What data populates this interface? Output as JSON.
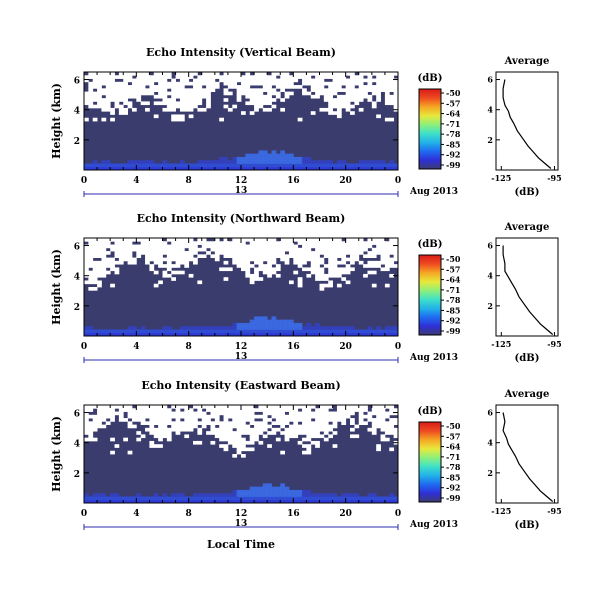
{
  "colors": {
    "background_echo": "#3b3c6e",
    "colorbar_stops": [
      "#3b3c6e",
      "#2f2fd8",
      "#1f6cf0",
      "#23b3e8",
      "#3fe0c8",
      "#8ef07a",
      "#e8e83c",
      "#f5a623",
      "#ee4a22",
      "#d81c18"
    ]
  },
  "xlabel_bottom": "Local Time",
  "date_label": "Aug 2013",
  "day_label": "13",
  "chart_data": [
    {
      "type": "heatmap",
      "title": "Echo Intensity (Vertical Beam)",
      "ylabel": "Height (km)",
      "x_ticks": [
        "0",
        "4",
        "8",
        "12",
        "16",
        "20",
        "0"
      ],
      "y_ticks": [
        "6",
        "4",
        "2"
      ],
      "colorbar": {
        "title": "(dB)",
        "ticks": [
          "-50",
          "-57",
          "-64",
          "-71",
          "-78",
          "-85",
          "-92",
          "-99"
        ]
      },
      "average_profile": {
        "title": "Average",
        "xlabel": "(dB)",
        "x_ticks": [
          "-125",
          "-95"
        ],
        "y_ticks": [
          "6",
          "4",
          "2"
        ],
        "x": [
          -123,
          -124,
          -124,
          -123,
          -121,
          -120,
          -118,
          -116,
          -113,
          -110,
          -107,
          -104,
          -100,
          -97
        ],
        "y": [
          6.0,
          5.4,
          4.8,
          4.3,
          3.9,
          3.5,
          3.1,
          2.6,
          2.1,
          1.6,
          1.2,
          0.8,
          0.4,
          0.1
        ]
      }
    },
    {
      "type": "heatmap",
      "title": "Echo Intensity (Northward Beam)",
      "ylabel": "Height (km)",
      "x_ticks": [
        "0",
        "4",
        "8",
        "12",
        "16",
        "20",
        "0"
      ],
      "y_ticks": [
        "6",
        "4",
        "2"
      ],
      "colorbar": {
        "title": "(dB)",
        "ticks": [
          "-50",
          "-57",
          "-64",
          "-71",
          "-78",
          "-85",
          "-92",
          "-99"
        ]
      },
      "average_profile": {
        "title": "Average",
        "xlabel": "(dB)",
        "x_ticks": [
          "-125",
          "-95"
        ],
        "y_ticks": [
          "6",
          "4",
          "2"
        ],
        "x": [
          -124,
          -124,
          -123,
          -123,
          -121,
          -119,
          -117,
          -115,
          -112,
          -109,
          -106,
          -103,
          -99,
          -96
        ],
        "y": [
          6.0,
          5.4,
          4.8,
          4.3,
          3.9,
          3.5,
          3.1,
          2.6,
          2.1,
          1.6,
          1.2,
          0.8,
          0.4,
          0.1
        ]
      }
    },
    {
      "type": "heatmap",
      "title": "Echo Intensity (Eastward Beam)",
      "ylabel": "Height (km)",
      "x_ticks": [
        "0",
        "4",
        "8",
        "12",
        "16",
        "20",
        "0"
      ],
      "y_ticks": [
        "6",
        "4",
        "2"
      ],
      "colorbar": {
        "title": "(dB)",
        "ticks": [
          "-50",
          "-57",
          "-64",
          "-71",
          "-78",
          "-85",
          "-92",
          "-99"
        ]
      },
      "average_profile": {
        "title": "Average",
        "xlabel": "(dB)",
        "x_ticks": [
          "-125",
          "-95"
        ],
        "y_ticks": [
          "6",
          "4",
          "2"
        ],
        "x": [
          -124,
          -123,
          -124,
          -122,
          -121,
          -119,
          -117,
          -115,
          -112,
          -109,
          -106,
          -103,
          -99,
          -96
        ],
        "y": [
          6.0,
          5.4,
          4.8,
          4.3,
          3.9,
          3.5,
          3.1,
          2.6,
          2.1,
          1.6,
          1.2,
          0.8,
          0.4,
          0.1
        ]
      }
    }
  ]
}
